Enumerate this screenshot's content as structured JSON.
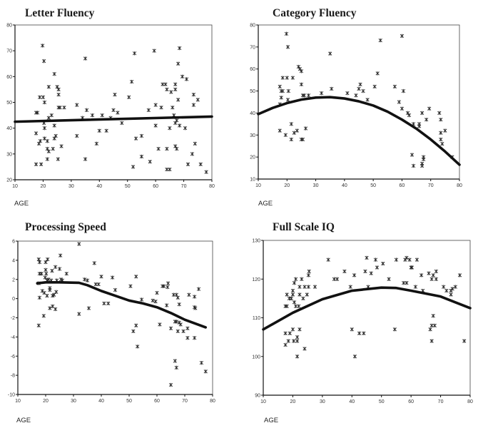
{
  "chart_data": [
    {
      "type": "scatter",
      "title": "Letter Fluency",
      "xlabel": "AGE",
      "ylabel": "",
      "xlim": [
        10,
        80
      ],
      "ylim": [
        20,
        80
      ],
      "xticks": [
        10,
        20,
        30,
        40,
        50,
        60,
        70,
        80
      ],
      "yticks": [
        20,
        30,
        40,
        50,
        60,
        70,
        80
      ],
      "grid": false,
      "points": [
        [
          17.5,
          46
        ],
        [
          17.5,
          38
        ],
        [
          17.5,
          26
        ],
        [
          18,
          46
        ],
        [
          18.5,
          34
        ],
        [
          18.8,
          52
        ],
        [
          19,
          35
        ],
        [
          19.3,
          26
        ],
        [
          19.8,
          72
        ],
        [
          20,
          52
        ],
        [
          20.3,
          66
        ],
        [
          20.3,
          42
        ],
        [
          20.5,
          50
        ],
        [
          20.5,
          40
        ],
        [
          20.5,
          36
        ],
        [
          21.5,
          35
        ],
        [
          21.5,
          32
        ],
        [
          21.5,
          28
        ],
        [
          22,
          44
        ],
        [
          22,
          56
        ],
        [
          22,
          31
        ],
        [
          23,
          45
        ],
        [
          23.5,
          32
        ],
        [
          24,
          41
        ],
        [
          24,
          36
        ],
        [
          24,
          61
        ],
        [
          24.5,
          37
        ],
        [
          25,
          56
        ],
        [
          25.3,
          28
        ],
        [
          25.5,
          53
        ],
        [
          25.5,
          55
        ],
        [
          25.5,
          48
        ],
        [
          26,
          48
        ],
        [
          26.5,
          33
        ],
        [
          27.5,
          48
        ],
        [
          32,
          49
        ],
        [
          32,
          37
        ],
        [
          34,
          44
        ],
        [
          35,
          67
        ],
        [
          35,
          28
        ],
        [
          35.5,
          47
        ],
        [
          37.5,
          45
        ],
        [
          39,
          34
        ],
        [
          40,
          39
        ],
        [
          41,
          45
        ],
        [
          42.5,
          39
        ],
        [
          44,
          44
        ],
        [
          45,
          47
        ],
        [
          45.5,
          53
        ],
        [
          46.5,
          46
        ],
        [
          48,
          42
        ],
        [
          50.5,
          52
        ],
        [
          51.5,
          58
        ],
        [
          52,
          25
        ],
        [
          52.5,
          69
        ],
        [
          53,
          36
        ],
        [
          55,
          37
        ],
        [
          55,
          29
        ],
        [
          57.5,
          47
        ],
        [
          58,
          27
        ],
        [
          59.5,
          70
        ],
        [
          60,
          49
        ],
        [
          60,
          41
        ],
        [
          61,
          32
        ],
        [
          62,
          48
        ],
        [
          62.5,
          57
        ],
        [
          63.5,
          57
        ],
        [
          64,
          55
        ],
        [
          64,
          32
        ],
        [
          64,
          24
        ],
        [
          65,
          24
        ],
        [
          65,
          40
        ],
        [
          65.5,
          54
        ],
        [
          66,
          48
        ],
        [
          66.5,
          45
        ],
        [
          67,
          57
        ],
        [
          67,
          55
        ],
        [
          67,
          42
        ],
        [
          67,
          33
        ],
        [
          67.5,
          43
        ],
        [
          67.5,
          32
        ],
        [
          68,
          65
        ],
        [
          68,
          51
        ],
        [
          68.5,
          41
        ],
        [
          68.5,
          71
        ],
        [
          69.5,
          60
        ],
        [
          70.5,
          40
        ],
        [
          71,
          59
        ],
        [
          71.5,
          26
        ],
        [
          73,
          30
        ],
        [
          73.5,
          49
        ],
        [
          73.5,
          53
        ],
        [
          74,
          34
        ],
        [
          75,
          51
        ],
        [
          76,
          26
        ],
        [
          78,
          23
        ]
      ],
      "fit": {
        "x": [
          10,
          80
        ],
        "y": [
          42.5,
          44.5
        ]
      }
    },
    {
      "type": "scatter",
      "title": "Category Fluency",
      "xlabel": "AGE",
      "ylabel": "",
      "xlim": [
        10,
        80
      ],
      "ylim": [
        10,
        80
      ],
      "xticks": [
        10,
        20,
        30,
        40,
        50,
        60,
        70,
        80
      ],
      "yticks": [
        10,
        20,
        30,
        40,
        50,
        60,
        70,
        80
      ],
      "grid": false,
      "points": [
        [
          17.5,
          52
        ],
        [
          17.5,
          44
        ],
        [
          17.5,
          32
        ],
        [
          18,
          50
        ],
        [
          18,
          47
        ],
        [
          18.5,
          50
        ],
        [
          18.5,
          56
        ],
        [
          19.5,
          30
        ],
        [
          19.8,
          76
        ],
        [
          20,
          56
        ],
        [
          20.3,
          70
        ],
        [
          20.3,
          46
        ],
        [
          20.5,
          50
        ],
        [
          21.5,
          35
        ],
        [
          21.5,
          28
        ],
        [
          22,
          56
        ],
        [
          22.5,
          31
        ],
        [
          23.5,
          32
        ],
        [
          24,
          61
        ],
        [
          24.5,
          60
        ],
        [
          25,
          59
        ],
        [
          25,
          53
        ],
        [
          25,
          28
        ],
        [
          25.5,
          48
        ],
        [
          25.5,
          28
        ],
        [
          26,
          48
        ],
        [
          26.5,
          33
        ],
        [
          27.5,
          48
        ],
        [
          32,
          49
        ],
        [
          35,
          67
        ],
        [
          35.5,
          51
        ],
        [
          41,
          49
        ],
        [
          44,
          48
        ],
        [
          45,
          51
        ],
        [
          45.5,
          53
        ],
        [
          46.5,
          50
        ],
        [
          48,
          46
        ],
        [
          50.5,
          52
        ],
        [
          51.5,
          58
        ],
        [
          52.5,
          73
        ],
        [
          57.5,
          52
        ],
        [
          59,
          45
        ],
        [
          60,
          75
        ],
        [
          60,
          42
        ],
        [
          60.5,
          50
        ],
        [
          62,
          40
        ],
        [
          62.5,
          39
        ],
        [
          63.5,
          21
        ],
        [
          64,
          16
        ],
        [
          64,
          35
        ],
        [
          66,
          35
        ],
        [
          66,
          34
        ],
        [
          67,
          17
        ],
        [
          67,
          16
        ],
        [
          67,
          40
        ],
        [
          67.5,
          20
        ],
        [
          67.5,
          19
        ],
        [
          68.5,
          37
        ],
        [
          69.5,
          42
        ],
        [
          73,
          40
        ],
        [
          73.5,
          37
        ],
        [
          73.5,
          31
        ],
        [
          73.5,
          28
        ],
        [
          74,
          26
        ],
        [
          75,
          32
        ],
        [
          77.5,
          20
        ]
      ],
      "fit": {
        "x": [
          10,
          15,
          20,
          25,
          30,
          35,
          40,
          45,
          50,
          55,
          60,
          65,
          70,
          75,
          80
        ],
        "y": [
          39.5,
          42.3,
          44.5,
          46.1,
          47,
          47.2,
          46.6,
          45.3,
          43.4,
          40.6,
          37,
          32.9,
          28,
          22.5,
          16.5
        ]
      }
    },
    {
      "type": "scatter",
      "title": "Processing Speed",
      "xlabel": "AGE",
      "ylabel": "",
      "xlim": [
        10,
        80
      ],
      "ylim": [
        -10,
        6
      ],
      "xticks": [
        10,
        20,
        30,
        40,
        50,
        60,
        70,
        80
      ],
      "yticks": [
        -10,
        -8,
        -6,
        -4,
        -2,
        0,
        2,
        4,
        6
      ],
      "grid": false,
      "points": [
        [
          17.5,
          1.6
        ],
        [
          17.5,
          4.1
        ],
        [
          17.5,
          -2.8
        ],
        [
          17.8,
          3.8
        ],
        [
          17.8,
          2.6
        ],
        [
          17.8,
          0.1
        ],
        [
          18.5,
          2.6
        ],
        [
          18.8,
          0.8
        ],
        [
          19.3,
          -1.8
        ],
        [
          19.5,
          0.6
        ],
        [
          19.8,
          2.2
        ],
        [
          20,
          3.8
        ],
        [
          20,
          3
        ],
        [
          20.2,
          2.6
        ],
        [
          20.5,
          1.9
        ],
        [
          20.5,
          0.3
        ],
        [
          20.7,
          4.1
        ],
        [
          21,
          2.0
        ],
        [
          21.5,
          -1.0
        ],
        [
          21.5,
          1.1
        ],
        [
          21.5,
          0.9
        ],
        [
          22,
          1.9
        ],
        [
          22.3,
          2.9
        ],
        [
          22.5,
          0.3
        ],
        [
          22.5,
          -0.8
        ],
        [
          23,
          0.4
        ],
        [
          23.5,
          3.3
        ],
        [
          23.5,
          -1.1
        ],
        [
          23.8,
          0.7
        ],
        [
          24,
          1.9
        ],
        [
          25,
          3.1
        ],
        [
          25.3,
          4.5
        ],
        [
          25.5,
          2
        ],
        [
          26,
          1.9
        ],
        [
          27.5,
          2.6
        ],
        [
          32,
          5.7
        ],
        [
          32,
          -1.6
        ],
        [
          34,
          2.0
        ],
        [
          35,
          1.9
        ],
        [
          35.5,
          -1.0
        ],
        [
          37.5,
          3.7
        ],
        [
          38,
          1.5
        ],
        [
          39,
          1.5
        ],
        [
          40,
          2.3
        ],
        [
          41,
          -0.5
        ],
        [
          42.5,
          -0.5
        ],
        [
          44,
          2.2
        ],
        [
          45,
          0.9
        ],
        [
          50.5,
          1.3
        ],
        [
          51.5,
          -3.4
        ],
        [
          52.5,
          -2.8
        ],
        [
          52.5,
          2.3
        ],
        [
          53,
          -5
        ],
        [
          54.5,
          -0.1
        ],
        [
          58.5,
          -0.2
        ],
        [
          59.5,
          -0.3
        ],
        [
          60,
          0.6
        ],
        [
          61,
          -2.7
        ],
        [
          62,
          1.3
        ],
        [
          62.5,
          1.3
        ],
        [
          63.5,
          -0.7
        ],
        [
          63.8,
          1.2
        ],
        [
          64,
          1.6
        ],
        [
          65,
          -3.1
        ],
        [
          65,
          -9
        ],
        [
          66,
          0.4
        ],
        [
          66.5,
          -2.4
        ],
        [
          66.5,
          -6.5
        ],
        [
          67,
          0.4
        ],
        [
          67,
          -2.4
        ],
        [
          67,
          -7.2
        ],
        [
          67.5,
          0.1
        ],
        [
          67.5,
          -3.4
        ],
        [
          68,
          -2.5
        ],
        [
          68,
          -0.6
        ],
        [
          68.5,
          -2.7
        ],
        [
          69.5,
          -3.4
        ],
        [
          71,
          -3.1
        ],
        [
          71,
          -4.1
        ],
        [
          71.5,
          0.4
        ],
        [
          73.5,
          0.2
        ],
        [
          73.5,
          -0.9
        ],
        [
          73.5,
          -4.1
        ],
        [
          73.8,
          -1.0
        ],
        [
          75,
          1.0
        ],
        [
          76,
          -6.7
        ],
        [
          77.5,
          -7.6
        ]
      ],
      "fit": {
        "x": [
          17,
          20,
          25,
          32,
          35,
          40,
          45,
          50,
          55,
          60,
          65,
          70,
          77.5
        ],
        "y": [
          1.6,
          1.7,
          1.7,
          1.65,
          1.4,
          0.8,
          0.3,
          -0.2,
          -0.5,
          -0.9,
          -1.5,
          -2.2,
          -3.0
        ]
      }
    },
    {
      "type": "scatter",
      "title": "Full Scale IQ",
      "xlabel": "AGE",
      "ylabel": "",
      "xlim": [
        10,
        80
      ],
      "ylim": [
        90,
        130
      ],
      "xticks": [
        10,
        20,
        30,
        40,
        50,
        60,
        70,
        80
      ],
      "yticks": [
        90,
        100,
        110,
        120,
        130
      ],
      "grid": false,
      "points": [
        [
          17.5,
          113
        ],
        [
          17.5,
          106
        ],
        [
          17.5,
          103
        ],
        [
          18,
          116
        ],
        [
          18,
          113
        ],
        [
          18.5,
          104
        ],
        [
          18.8,
          115
        ],
        [
          19,
          106
        ],
        [
          19.5,
          115
        ],
        [
          20,
          107
        ],
        [
          20,
          117
        ],
        [
          20,
          116
        ],
        [
          20.3,
          104
        ],
        [
          20.5,
          119
        ],
        [
          20.5,
          114
        ],
        [
          21,
          113
        ],
        [
          21,
          120
        ],
        [
          21.5,
          105
        ],
        [
          21.5,
          104
        ],
        [
          21.5,
          100
        ],
        [
          22,
          113
        ],
        [
          22.3,
          118
        ],
        [
          22.3,
          116
        ],
        [
          22.3,
          107
        ],
        [
          23,
          120
        ],
        [
          23.5,
          115
        ],
        [
          24,
          118
        ],
        [
          24,
          102
        ],
        [
          24.8,
          116
        ],
        [
          25.3,
          118
        ],
        [
          25.3,
          121
        ],
        [
          25.5,
          122
        ],
        [
          27.5,
          118
        ],
        [
          32,
          125
        ],
        [
          34,
          120
        ],
        [
          35,
          120
        ],
        [
          37.5,
          122
        ],
        [
          39.5,
          118
        ],
        [
          40,
          107
        ],
        [
          40.8,
          121
        ],
        [
          41,
          100
        ],
        [
          42.5,
          106
        ],
        [
          44,
          106
        ],
        [
          44.5,
          122
        ],
        [
          45,
          125.5
        ],
        [
          45.5,
          118
        ],
        [
          46.5,
          121.5
        ],
        [
          48,
          125
        ],
        [
          48.5,
          123
        ],
        [
          50.5,
          124
        ],
        [
          52.5,
          120
        ],
        [
          54.5,
          107
        ],
        [
          55,
          125
        ],
        [
          57.5,
          119
        ],
        [
          58,
          125
        ],
        [
          58.5,
          119
        ],
        [
          58.5,
          125.5
        ],
        [
          59.5,
          125
        ],
        [
          60,
          123
        ],
        [
          60.3,
          123
        ],
        [
          61.5,
          118
        ],
        [
          62,
          125
        ],
        [
          63.5,
          121
        ],
        [
          64,
          117
        ],
        [
          66,
          121.5
        ],
        [
          66.5,
          107
        ],
        [
          67,
          120
        ],
        [
          67,
          108
        ],
        [
          67,
          104
        ],
        [
          67.5,
          110.5
        ],
        [
          67.5,
          121
        ],
        [
          68,
          108
        ],
        [
          68.5,
          120
        ],
        [
          68.5,
          122
        ],
        [
          71,
          118
        ],
        [
          72,
          117
        ],
        [
          73.5,
          117
        ],
        [
          73.5,
          116
        ],
        [
          74,
          117.5
        ],
        [
          75,
          118
        ],
        [
          76.5,
          121
        ],
        [
          78,
          104
        ]
      ],
      "fit": {
        "x": [
          10,
          20,
          30,
          40,
          50,
          55,
          60,
          70,
          80
        ],
        "y": [
          107,
          111.3,
          114.8,
          117,
          117.8,
          117.7,
          117,
          115.5,
          112.5
        ]
      }
    }
  ]
}
